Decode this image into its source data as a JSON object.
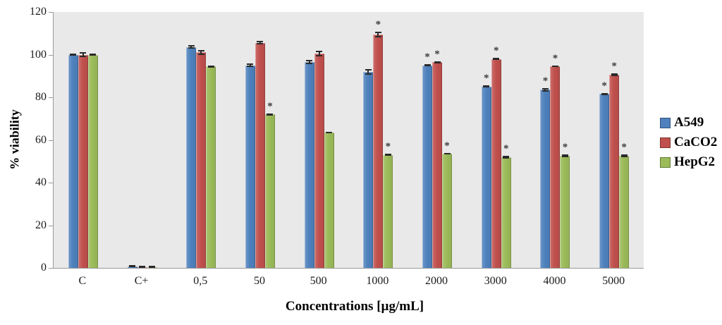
{
  "chart_data": {
    "type": "bar",
    "title": "",
    "xlabel": "Concentrations [µg/mL]",
    "ylabel": "% viability",
    "ylim": [
      0,
      120
    ],
    "yticks": [
      0,
      20,
      40,
      60,
      80,
      100,
      120
    ],
    "grid": false,
    "legend_position": "right",
    "plot_background": "#e9e9e9",
    "significance_marker": "*",
    "categories": [
      "C",
      "C+",
      "0,5",
      "50",
      "500",
      "1000",
      "2000",
      "3000",
      "4000",
      "5000"
    ],
    "series": [
      {
        "name": "A549",
        "color": "#4e81bd",
        "values": [
          100,
          0.8,
          103.5,
          95,
          96.5,
          92,
          95,
          85,
          83.5,
          81.5
        ],
        "errors": [
          0.4,
          0.2,
          0.8,
          0.8,
          1.0,
          1.3,
          0.4,
          0.5,
          0.8,
          0.5
        ],
        "significant": [
          false,
          false,
          false,
          false,
          false,
          false,
          true,
          true,
          true,
          true
        ]
      },
      {
        "name": "CaCO2",
        "color": "#c0504d",
        "values": [
          100,
          0.4,
          101,
          105.5,
          100.5,
          109.5,
          96.5,
          98,
          94.5,
          90.5
        ],
        "errors": [
          1.0,
          0.2,
          1.0,
          0.8,
          1.2,
          1.3,
          0.5,
          0.5,
          0.4,
          0.7
        ],
        "significant": [
          false,
          false,
          false,
          false,
          false,
          true,
          true,
          true,
          true,
          true
        ]
      },
      {
        "name": "HepG2",
        "color": "#9bbb59",
        "values": [
          100,
          0.4,
          94.5,
          72,
          63.5,
          53,
          53.5,
          52,
          52.5,
          52.5
        ],
        "errors": [
          0.6,
          0.2,
          0.5,
          0.5,
          0.3,
          0.4,
          0.4,
          0.7,
          0.7,
          0.6
        ],
        "significant": [
          false,
          false,
          false,
          true,
          false,
          true,
          true,
          true,
          true,
          true
        ]
      }
    ]
  }
}
